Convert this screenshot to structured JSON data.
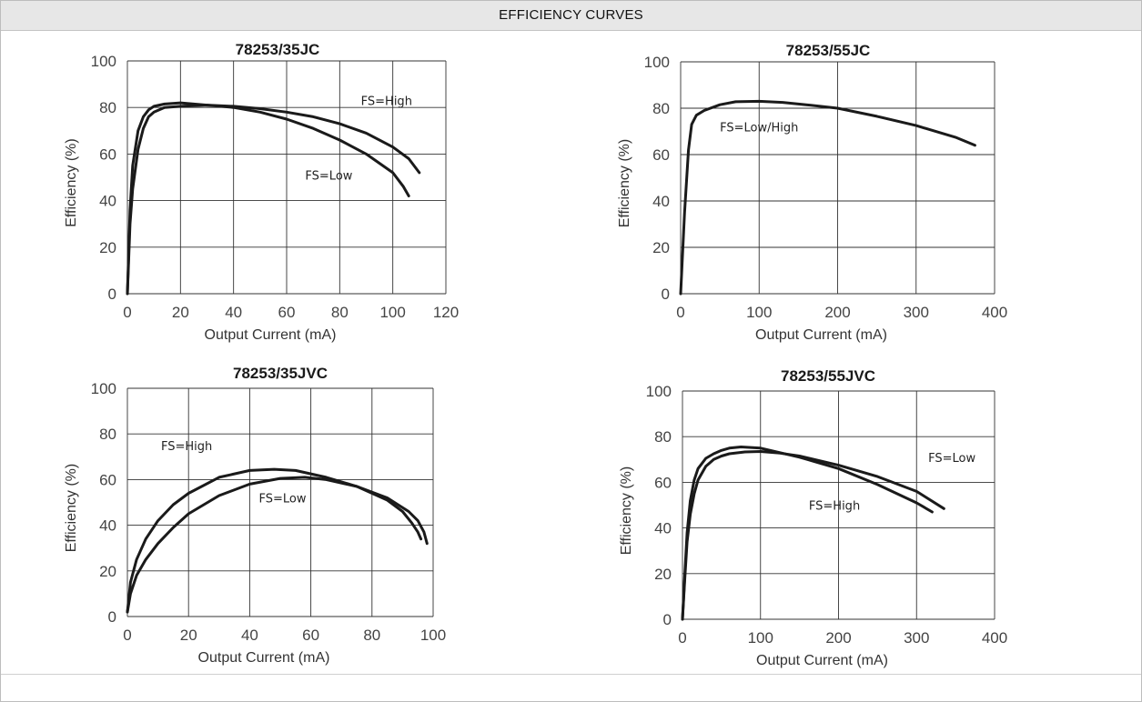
{
  "header": {
    "title": "EFFICIENCY CURVES"
  },
  "chart_data": [
    {
      "type": "line",
      "title": "78253/35JC",
      "xlabel": "Output Current (mA)",
      "ylabel": "Efficiency (%)",
      "xlim": [
        0,
        120
      ],
      "ylim": [
        0,
        100
      ],
      "xticks": [
        "0",
        "20",
        "40",
        "60",
        "80",
        "100",
        "120"
      ],
      "yticks": [
        "0",
        "20",
        "40",
        "60",
        "80",
        "100"
      ],
      "grid": true,
      "series": [
        {
          "name": "FS=High",
          "x": [
            0,
            1,
            2,
            4,
            6,
            8,
            10,
            14,
            20,
            30,
            40,
            50,
            60,
            70,
            80,
            90,
            100,
            106,
            110
          ],
          "y": [
            0,
            30,
            45,
            62,
            71,
            76,
            78,
            80,
            80.5,
            81,
            80.5,
            79.5,
            78,
            76,
            73,
            69,
            63,
            58,
            52
          ]
        },
        {
          "name": "FS=Low",
          "x": [
            0,
            1,
            2,
            4,
            6,
            8,
            10,
            14,
            20,
            30,
            40,
            50,
            60,
            70,
            80,
            90,
            100,
            104,
            106
          ],
          "y": [
            0,
            36,
            55,
            70,
            76,
            79,
            80.5,
            81.5,
            82,
            81,
            80,
            78,
            75,
            71,
            66,
            60,
            52,
            46,
            42
          ]
        }
      ],
      "annotations": [
        {
          "text": "FS=High",
          "x": 88,
          "y": 81
        },
        {
          "text": "FS=Low",
          "x": 67,
          "y": 49
        }
      ]
    },
    {
      "type": "line",
      "title": "78253/55JC",
      "xlabel": "Output Current (mA)",
      "ylabel": "Efficiency (%)",
      "xlim": [
        0,
        400
      ],
      "ylim": [
        0,
        100
      ],
      "xticks": [
        "0",
        "100",
        "200",
        "300",
        "400"
      ],
      "yticks": [
        "0",
        "20",
        "40",
        "60",
        "80",
        "100"
      ],
      "grid": true,
      "series": [
        {
          "name": "FS=Low/High",
          "x": [
            0,
            5,
            10,
            14,
            20,
            30,
            50,
            70,
            100,
            130,
            160,
            200,
            250,
            300,
            350,
            375
          ],
          "y": [
            0,
            35,
            62,
            73,
            77,
            79,
            81.5,
            82.8,
            83,
            82.5,
            81.5,
            80,
            76.5,
            72.5,
            67.5,
            64
          ]
        }
      ],
      "annotations": [
        {
          "text": "FS=Low/High",
          "x": 50,
          "y": 70
        }
      ]
    },
    {
      "type": "line",
      "title": "78253/35JVC",
      "xlabel": "Output Current (mA)",
      "ylabel": "Efficiency (%)",
      "xlim": [
        0,
        100
      ],
      "ylim": [
        0,
        100
      ],
      "xticks": [
        "0",
        "20",
        "40",
        "60",
        "80",
        "100"
      ],
      "yticks": [
        "0",
        "20",
        "40",
        "60",
        "80",
        "100"
      ],
      "grid": true,
      "series": [
        {
          "name": "FS=High",
          "x": [
            0,
            1,
            3,
            6,
            10,
            15,
            20,
            30,
            40,
            48,
            55,
            65,
            75,
            85,
            90,
            93,
            95,
            96
          ],
          "y": [
            2,
            15,
            25,
            34,
            42,
            49,
            54,
            61,
            64,
            64.5,
            64,
            61,
            57,
            51,
            46,
            41,
            37,
            34
          ]
        },
        {
          "name": "FS=Low",
          "x": [
            0,
            1,
            3,
            6,
            10,
            15,
            20,
            30,
            40,
            50,
            58,
            65,
            75,
            85,
            92,
            95,
            97,
            98
          ],
          "y": [
            2,
            10,
            18,
            25,
            32,
            39,
            45,
            53,
            58,
            60.5,
            61,
            60,
            57,
            52,
            46,
            42,
            37,
            32
          ]
        }
      ],
      "annotations": [
        {
          "text": "FS=High",
          "x": 11,
          "y": 73
        },
        {
          "text": "FS=Low",
          "x": 43,
          "y": 50
        }
      ]
    },
    {
      "type": "line",
      "title": "78253/55JVC",
      "xlabel": "Output Current (mA)",
      "ylabel": "Efficiency (%)",
      "xlim": [
        0,
        400
      ],
      "ylim": [
        0,
        100
      ],
      "xticks": [
        "0",
        "100",
        "200",
        "300",
        "400"
      ],
      "yticks": [
        "0",
        "20",
        "40",
        "60",
        "80",
        "100"
      ],
      "grid": true,
      "series": [
        {
          "name": "FS=High",
          "x": [
            0,
            3,
            6,
            10,
            15,
            20,
            30,
            40,
            50,
            60,
            75,
            100,
            125,
            150,
            200,
            250,
            300,
            320
          ],
          "y": [
            0,
            20,
            38,
            52,
            61,
            66,
            70.5,
            72.5,
            74,
            75,
            75.5,
            75,
            73,
            71,
            66,
            59,
            51,
            47
          ]
        },
        {
          "name": "FS=Low",
          "x": [
            0,
            3,
            6,
            10,
            15,
            20,
            30,
            40,
            50,
            60,
            80,
            100,
            125,
            150,
            200,
            250,
            300,
            335
          ],
          "y": [
            0,
            18,
            34,
            46,
            55,
            61,
            67,
            70,
            71.5,
            72.5,
            73.3,
            73.5,
            72.8,
            71.5,
            67.5,
            62.5,
            56,
            48.5
          ]
        }
      ],
      "annotations": [
        {
          "text": "FS=Low",
          "x": 315,
          "y": 69
        },
        {
          "text": "FS=High",
          "x": 162,
          "y": 48
        }
      ]
    }
  ]
}
